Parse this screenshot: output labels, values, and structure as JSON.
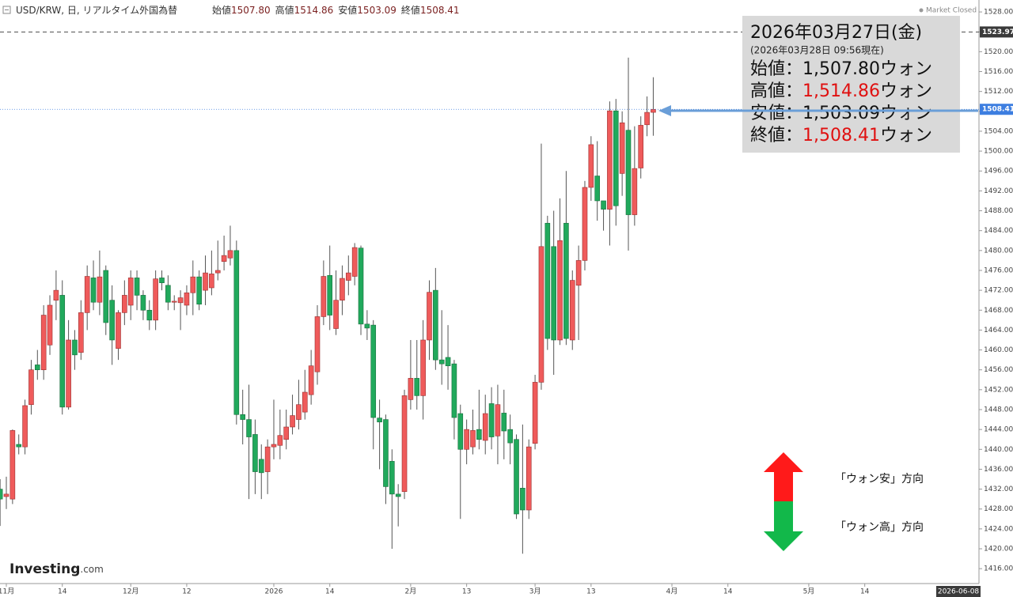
{
  "chart_data": {
    "type": "candlestick",
    "title": "USD/KRW, 日, リアルタイム外国為替",
    "header_fields": [
      {
        "label": "始値",
        "value": "1507.80"
      },
      {
        "label": "高値",
        "value": "1514.86"
      },
      {
        "label": "安値",
        "value": "1503.09"
      },
      {
        "label": "終値",
        "value": "1508.41"
      }
    ],
    "status": "Market Closed",
    "logo": {
      "name": "Investing",
      "suffix": ".com"
    },
    "up_color": "#ef5b5b",
    "down_color": "#21a95c",
    "categories": [
      null,
      "11月",
      null,
      null,
      null,
      null,
      null,
      null,
      null,
      null,
      "14",
      null,
      null,
      null,
      null,
      null,
      null,
      null,
      null,
      null,
      null,
      "12月",
      null,
      null,
      null,
      null,
      null,
      null,
      null,
      null,
      "12",
      null,
      null,
      null,
      null,
      null,
      null,
      null,
      null,
      null,
      null,
      null,
      null,
      null,
      "2026",
      null,
      null,
      null,
      null,
      null,
      null,
      null,
      null,
      "14",
      null,
      null,
      null,
      null,
      null,
      null,
      null,
      null,
      null,
      null,
      null,
      null,
      "2月",
      null,
      null,
      null,
      null,
      null,
      null,
      null,
      null,
      "13",
      null,
      null,
      null,
      null,
      null,
      null,
      null,
      null,
      null,
      null,
      "3月",
      null,
      null,
      null,
      null,
      null,
      null,
      null,
      null,
      "13",
      null,
      null,
      null,
      null,
      null,
      null,
      null,
      null,
      null,
      null,
      null,
      null,
      "4月",
      null,
      null,
      null,
      null,
      null,
      null,
      null,
      null,
      "14",
      null,
      null,
      null,
      null,
      null,
      null,
      null,
      null,
      null,
      null,
      null,
      null,
      "5月",
      null,
      null,
      null,
      null,
      null,
      null,
      null,
      null,
      "14",
      null,
      null,
      null,
      null,
      null,
      null,
      null,
      null,
      null,
      null,
      null,
      null,
      null,
      null,
      null,
      null,
      null,
      null
    ],
    "open": [
      1432,
      1430.5,
      1430,
      1441,
      1440.5,
      1449,
      1457,
      1456,
      1461,
      1470,
      1471,
      1448.5,
      1462,
      1459.5,
      1467.5,
      1474.5,
      1469.6,
      1476,
      1470,
      1460.3,
      1467.5,
      1469,
      1474.5,
      1471,
      1468,
      1466,
      1474.5,
      1473,
      1469.6,
      1469.5,
      1469,
      1471.5,
      1474.7,
      1472,
      1472.5,
      1475.5,
      1477.8,
      1478.5,
      1480,
      1447,
      1446,
      1443,
      1438,
      1435.5,
      1440.5,
      1440.8,
      1442,
      1444.5,
      1446,
      1447.5,
      1451,
      1455.6,
      1466.7,
      1475,
      1464.3,
      1470,
      1474,
      1474.8,
      1480.5,
      1465.2,
      1465,
      1446.3,
      1446,
      1437.6,
      1431,
      1431.5,
      1450,
      1454.3,
      1450.8,
      1462,
      1472,
      1458,
      1458.5,
      1457.2,
      1447.2,
      1440,
      1440.5,
      1444,
      1441.8,
      1449.2,
      1442.7,
      1447.3,
      1444,
      1442,
      1432.2,
      1427.8,
      1441.2,
      1453.5,
      1485.5,
      1480.8,
      1462,
      1485.5,
      1462,
      1473,
      1478,
      1492.7,
      1495,
      1490,
      1488.3,
      1508.1,
      1495.5,
      1504.2,
      1487.2,
      1496.6,
      1505.3,
      1507.8,
      null,
      null,
      null,
      null,
      null,
      null,
      null,
      null,
      null,
      null,
      null,
      null,
      null,
      null,
      null,
      null,
      null,
      null,
      null,
      null,
      null,
      null,
      null,
      null,
      null,
      null,
      null,
      null,
      null,
      null,
      null,
      null,
      null,
      null,
      null,
      null,
      null,
      null,
      null,
      null,
      null,
      null,
      null,
      null,
      null,
      null,
      null,
      null,
      null,
      null,
      null,
      null
    ],
    "high": [
      1434,
      1434.5,
      1444,
      1443,
      1450,
      1458,
      1460,
      1469,
      1471,
      1476,
      1474,
      1466,
      1464,
      1470,
      1477,
      1478,
      1480,
      1477,
      1473,
      1468,
      1474,
      1476,
      1476,
      1472,
      1470,
      1476,
      1476,
      1475,
      1471,
      1472,
      1473,
      1478,
      1476,
      1479,
      1480,
      1482,
      1483,
      1485,
      1482,
      1452,
      1453,
      1446,
      1441,
      1442,
      1450,
      1448,
      1448,
      1451,
      1454,
      1456,
      1460,
      1469,
      1478,
      1481,
      1476,
      1477,
      1479,
      1481.5,
      1481,
      1468,
      1466,
      1450,
      1447,
      1440,
      1433,
      1452,
      1462,
      1462,
      1466,
      1474,
      1476.5,
      1468,
      1465,
      1458,
      1449,
      1446,
      1448,
      1452,
      1451,
      1452.5,
      1453,
      1452,
      1447,
      1443,
      1445,
      1442,
      1455,
      1501.5,
      1487,
      1488,
      1490.5,
      1496,
      1476,
      1481,
      1494,
      1503,
      1502,
      1490,
      1510,
      1510.5,
      1508,
      1518.8,
      1505,
      1507,
      1511,
      1514.86,
      null,
      null,
      null,
      null,
      null,
      null,
      null,
      null,
      null,
      null,
      null,
      null,
      null,
      null,
      null,
      null,
      null,
      null,
      null,
      null,
      null,
      null,
      null,
      null,
      null,
      null,
      null,
      null,
      null,
      null,
      null,
      null,
      null,
      null,
      null,
      null,
      null,
      null,
      null,
      null,
      null,
      null,
      null,
      null,
      null,
      null,
      null,
      null,
      null,
      null,
      null,
      null
    ],
    "low": [
      1424.6,
      1428,
      1429,
      1439,
      1439,
      1447,
      1454,
      1454,
      1459,
      1466,
      1447,
      1448,
      1456,
      1458,
      1464,
      1468,
      1467,
      1463,
      1457,
      1458,
      1465,
      1466,
      1468,
      1466,
      1464,
      1464,
      1472,
      1468,
      1468,
      1464,
      1467,
      1467,
      1468,
      1469,
      1471,
      1474,
      1476,
      1477,
      1445,
      1441,
      1430,
      1431,
      1430,
      1431,
      1438,
      1438,
      1440,
      1443,
      1444,
      1446,
      1449,
      1453,
      1465,
      1464,
      1463,
      1467,
      1471,
      1473,
      1463,
      1462,
      1440,
      1436,
      1429,
      1420,
      1424.5,
      1430,
      1448,
      1448,
      1446,
      1458,
      1456,
      1453,
      1452,
      1442,
      1426,
      1437,
      1439,
      1440,
      1439,
      1440,
      1437,
      1438,
      1437,
      1426,
      1419,
      1426,
      1440,
      1452,
      1460,
      1455,
      1461,
      1461,
      1460,
      1462,
      1476,
      1490,
      1486,
      1484,
      1481,
      1485,
      1491,
      1480,
      1485,
      1494.5,
      1503,
      1503.09,
      null,
      null,
      null,
      null,
      null,
      null,
      null,
      null,
      null,
      null,
      null,
      null,
      null,
      null,
      null,
      null,
      null,
      null,
      null,
      null,
      null,
      null,
      null,
      null,
      null,
      null,
      null,
      null,
      null,
      null,
      null,
      null,
      null,
      null,
      null,
      null,
      null,
      null,
      null,
      null,
      null,
      null,
      null,
      null,
      null,
      null,
      null,
      null,
      null,
      null,
      null,
      null
    ],
    "close": [
      1430,
      1431,
      1443.8,
      1440.5,
      1448.8,
      1456,
      1456,
      1467,
      1469,
      1472,
      1448.5,
      1462,
      1459,
      1467.5,
      1474.8,
      1469.6,
      1474.7,
      1465.5,
      1462,
      1467.5,
      1471,
      1474.5,
      1471,
      1468,
      1466,
      1474.3,
      1473.5,
      1469.6,
      1469.8,
      1470.5,
      1471.5,
      1474.7,
      1469.2,
      1475.5,
      1475.3,
      1476,
      1479,
      1480,
      1447,
      1446,
      1442.5,
      1435.5,
      1435.3,
      1440.5,
      1441,
      1442.8,
      1444.5,
      1446.8,
      1449,
      1451.5,
      1456.8,
      1466.7,
      1474.8,
      1467,
      1470,
      1474.4,
      1475.5,
      1480.6,
      1465.2,
      1464.4,
      1446.4,
      1445.5,
      1432.5,
      1431,
      1430.5,
      1450.8,
      1454.3,
      1450.8,
      1462,
      1471.6,
      1458,
      1457.2,
      1456.8,
      1446.4,
      1440,
      1444,
      1443.8,
      1442,
      1447.2,
      1442.5,
      1449,
      1443.7,
      1441.3,
      1427,
      1427.8,
      1440.5,
      1453.5,
      1480.8,
      1462.3,
      1462,
      1482,
      1462.3,
      1474,
      1478,
      1492.7,
      1501.3,
      1490,
      1488.3,
      1508.1,
      1489,
      1505.7,
      1487.2,
      1496.5,
      1505.2,
      1507.8,
      1508.41,
      null,
      null,
      null,
      null,
      null,
      null,
      null,
      null,
      null,
      null,
      null,
      null,
      null,
      null,
      null,
      null,
      null,
      null,
      null,
      null,
      null,
      null,
      null,
      null,
      null,
      null,
      null,
      null,
      null,
      null,
      null,
      null,
      null,
      null,
      null,
      null,
      null,
      null,
      null,
      null,
      null,
      null,
      null,
      null,
      null,
      null,
      null,
      null,
      null,
      null,
      null,
      null
    ],
    "ylim": [
      1413.4,
      1530.4
    ],
    "yticks": [
      {
        "value": 1416,
        "label": "1416.00"
      },
      {
        "value": 1420,
        "label": "1420.00"
      },
      {
        "value": 1424,
        "label": "1424.00"
      },
      {
        "value": 1428,
        "label": "1428.00"
      },
      {
        "value": 1432,
        "label": "1432.00"
      },
      {
        "value": 1436,
        "label": "1436.00"
      },
      {
        "value": 1440,
        "label": "1440.00"
      },
      {
        "value": 1444,
        "label": "1444.00"
      },
      {
        "value": 1448,
        "label": "1448.00"
      },
      {
        "value": 1452,
        "label": "1452.00"
      },
      {
        "value": 1456,
        "label": "1456.00"
      },
      {
        "value": 1460,
        "label": "1460.00"
      },
      {
        "value": 1464,
        "label": "1464.00"
      },
      {
        "value": 1468,
        "label": "1468.00"
      },
      {
        "value": 1472,
        "label": "1472.00"
      },
      {
        "value": 1476,
        "label": "1476.00"
      },
      {
        "value": 1480,
        "label": "1480.00"
      },
      {
        "value": 1484,
        "label": "1484.00"
      },
      {
        "value": 1488,
        "label": "1488.00"
      },
      {
        "value": 1492,
        "label": "1492.00"
      },
      {
        "value": 1496,
        "label": "1496.00"
      },
      {
        "value": 1500,
        "label": "1500.00"
      },
      {
        "value": 1504,
        "label": "1504.00"
      },
      {
        "value": 1508,
        "label": "1508.00"
      },
      {
        "value": 1512,
        "label": "1512.00"
      },
      {
        "value": 1516,
        "label": "1516.00"
      },
      {
        "value": 1520,
        "label": "1520.00"
      },
      {
        "value": 1524,
        "label": "1524.00"
      },
      {
        "value": 1528,
        "label": "1528.00"
      }
    ],
    "price_lines": [
      {
        "value": 1523.97,
        "label": "1523.97",
        "color": "#3a3a3a",
        "dash": "5,4"
      },
      {
        "value": 1508.41,
        "label": "1508.41",
        "color": "#3d7ee0",
        "dash": "1,2"
      }
    ],
    "x_end_label": "2026-06-08",
    "annotation": {
      "date": "2026年03月27日(金)",
      "asof": "(2026年03月28日 09:56現在)",
      "rows": [
        {
          "label": "始値：",
          "value": "1,507.80",
          "unit": "ウォン",
          "color": "#111"
        },
        {
          "label": "高値：",
          "value": "1,514.86",
          "unit": "ウォン",
          "color": "#e01010"
        },
        {
          "label": "安値：",
          "value": "1,503.09",
          "unit": "ウォン",
          "color": "#111"
        },
        {
          "label": "終値：",
          "value": "1,508.41",
          "unit": "ウォン",
          "color": "#e01010"
        }
      ]
    },
    "direction_legend": {
      "weak": "「ウォン安」方向",
      "strong": "「ウォン高」方向"
    }
  }
}
